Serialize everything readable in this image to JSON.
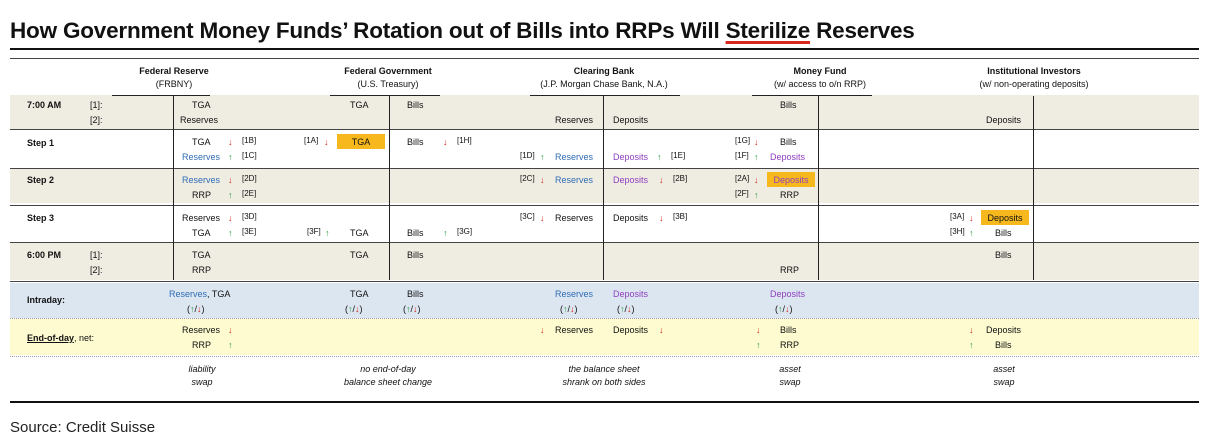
{
  "title": {
    "before": "How Government Money Funds’ Rotation out of Bills into RRPs Will ",
    "underlined": "Sterilize",
    "after": " Reserves"
  },
  "columns": {
    "fed": {
      "name": "Federal Reserve",
      "sub": "(FRBNY)"
    },
    "gov": {
      "name": "Federal Government",
      "sub": "(U.S. Treasury)"
    },
    "bank": {
      "name": "Clearing Bank",
      "sub": "(J.P. Morgan Chase Bank, N.A.)"
    },
    "mmf": {
      "name": "Money Fund",
      "sub": "(w/ access to o/n RRP)"
    },
    "inst": {
      "name": "Institutional Investors",
      "sub": "(w/ non-operating deposits)"
    }
  },
  "rows": {
    "start": {
      "label": "7:00 AM",
      "sub1": "[1]:",
      "sub2": "[2]:"
    },
    "step1": {
      "label": "Step 1"
    },
    "step2": {
      "label": "Step 2"
    },
    "step3": {
      "label": "Step 3"
    },
    "end": {
      "label": "6:00 PM",
      "sub1": "[1]:",
      "sub2": "[2]:"
    },
    "intraday": {
      "label": "Intraday:"
    },
    "eod": {
      "label": "End-of-day",
      "suffix": ", net:"
    }
  },
  "items": {
    "TGA": "TGA",
    "Bills": "Bills",
    "Reserves": "Reserves",
    "Deposits": "Deposits",
    "RRP": "RRP",
    "Reserves_TGA_pre": "Reserves",
    "Reserves_TGA_post": ", TGA"
  },
  "arrows": {
    "up": "↑",
    "down": "↓",
    "pair": "(↑/↓)",
    "open": "(",
    "sep": "/",
    "close": ")"
  },
  "refs": {
    "1A": "[1A]",
    "1B": "[1B]",
    "1C": "[1C]",
    "1D": "[1D]",
    "1E": "[1E]",
    "1F": "[1F]",
    "1G": "[1G]",
    "1H": "[1H]",
    "2A": "[2A]",
    "2B": "[2B]",
    "2C": "[2C]",
    "2D": "[2D]",
    "2E": "[2E]",
    "2F": "[2F]",
    "3A": "[3A]",
    "3B": "[3B]",
    "3C": "[3C]",
    "3D": "[3D]",
    "3E": "[3E]",
    "3F": "[3F]",
    "3G": "[3G]",
    "3H": "[3H]"
  },
  "notes": {
    "fed1": "liability",
    "fed2": "swap",
    "gov1": "no end-of-day",
    "gov2": "balance sheet change",
    "bank1": "the balance sheet",
    "bank2": "shrank on both sides",
    "mmf1": "asset",
    "mmf2": "swap",
    "inst1": "asset",
    "inst2": "swap"
  },
  "colors": {
    "highlight": "#f7b81d",
    "beige": "#efece2",
    "lightblue": "#dce6f1",
    "lightyellow": "#fdfbcf",
    "up": "#2a9a3c",
    "down": "#d8271c",
    "blue": "#2f6db5",
    "purple": "#8e3fbf"
  },
  "source": "Source: Credit Suisse"
}
